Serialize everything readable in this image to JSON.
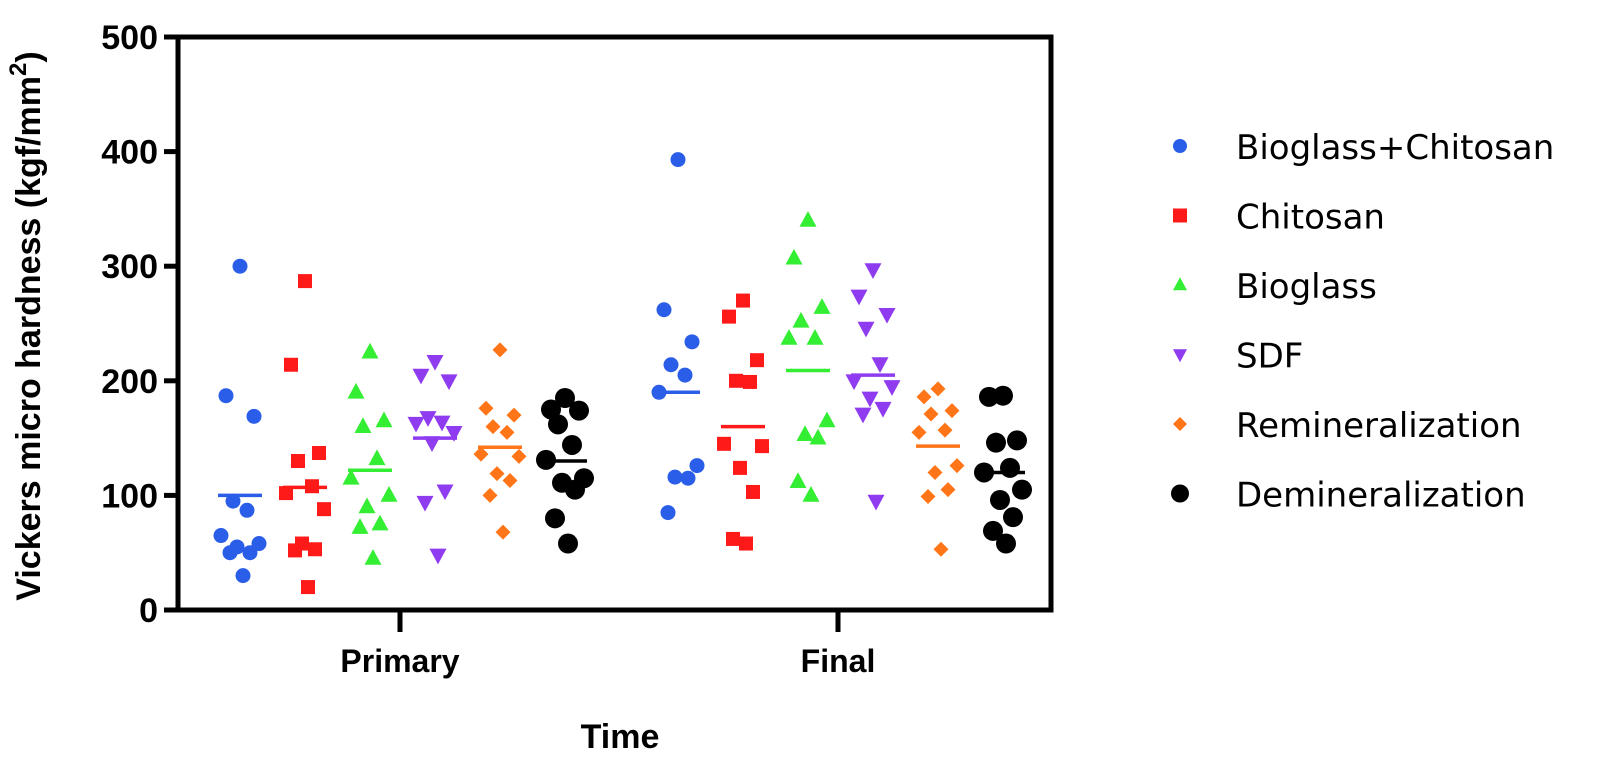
{
  "chart_data": {
    "type": "scatter",
    "xlabel": "Time",
    "ylabel": "Vickers micro hardness (kgf/mm",
    "ylabel_superscript": "2",
    "ylabel_suffix": ")",
    "ylim": [
      0,
      500
    ],
    "yticks": [
      "0",
      "100",
      "200",
      "300",
      "400",
      "500"
    ],
    "categories": [
      "Primary",
      "Final"
    ],
    "grid": false,
    "legend_position": "right",
    "series": [
      {
        "name": "Bioglass+Chitosan",
        "color": "#2a5ee8",
        "marker": "circle",
        "values": {
          "Primary": [
            300,
            187,
            169,
            95,
            87,
            65,
            58,
            55,
            50,
            50,
            30
          ],
          "Final": [
            393,
            262,
            234,
            214,
            205,
            190,
            126,
            116,
            115,
            85
          ]
        },
        "means": {
          "Primary": 100,
          "Final": 190
        }
      },
      {
        "name": "Chitosan",
        "color": "#ff1a1a",
        "marker": "square",
        "values": {
          "Primary": [
            287,
            214,
            137,
            130,
            108,
            102,
            88,
            58,
            53,
            52,
            20
          ],
          "Final": [
            270,
            256,
            218,
            200,
            199,
            145,
            143,
            124,
            103,
            62,
            58
          ]
        },
        "means": {
          "Primary": 107,
          "Final": 160
        }
      },
      {
        "name": "Bioglass",
        "color": "#33ee33",
        "marker": "triangle-up",
        "values": {
          "Primary": [
            225,
            190,
            165,
            160,
            132,
            115,
            100,
            90,
            75,
            72,
            45
          ],
          "Final": [
            340,
            307,
            264,
            252,
            237,
            237,
            165,
            153,
            150,
            112,
            100
          ]
        },
        "means": {
          "Primary": 122,
          "Final": 209
        }
      },
      {
        "name": "SDF",
        "color": "#8f3cf0",
        "marker": "triangle-down",
        "values": {
          "Primary": [
            217,
            205,
            200,
            168,
            164,
            163,
            155,
            146,
            104,
            94,
            48
          ],
          "Final": [
            297,
            274,
            258,
            246,
            215,
            200,
            195,
            185,
            176,
            171,
            95
          ]
        },
        "means": {
          "Primary": 150,
          "Final": 205
        }
      },
      {
        "name": "Remineralization",
        "color": "#ff7518",
        "marker": "diamond",
        "values": {
          "Primary": [
            227,
            176,
            170,
            160,
            155,
            136,
            134,
            119,
            113,
            100,
            68
          ],
          "Final": [
            193,
            186,
            174,
            171,
            157,
            155,
            126,
            120,
            105,
            99,
            53
          ]
        },
        "means": {
          "Primary": 142,
          "Final": 143
        }
      },
      {
        "name": "Demineralization",
        "color": "#000000",
        "marker": "circle",
        "values": {
          "Primary": [
            185,
            175,
            174,
            162,
            144,
            131,
            115,
            111,
            105,
            80,
            58
          ],
          "Final": [
            187,
            186,
            148,
            146,
            124,
            120,
            105,
            96,
            81,
            69,
            58
          ]
        },
        "means": {
          "Primary": 130,
          "Final": 120
        }
      }
    ]
  }
}
